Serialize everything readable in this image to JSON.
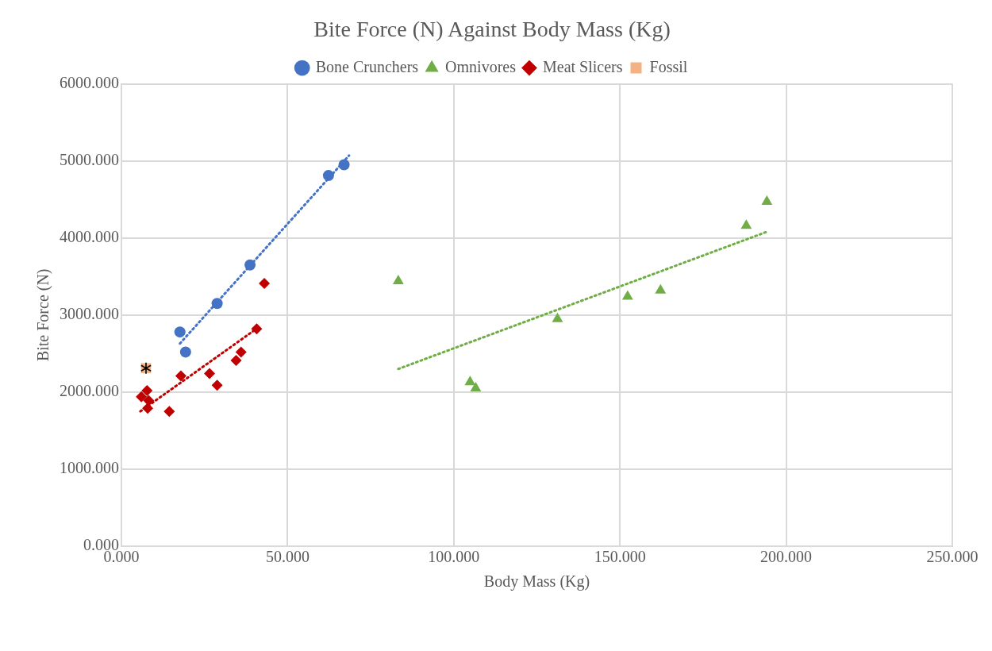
{
  "chart_data": {
    "type": "scatter",
    "title": "Bite Force (N) Against Body Mass (Kg)",
    "xlabel": "Body Mass (Kg)",
    "ylabel": "Bite Force (N)",
    "xlim": [
      0,
      250
    ],
    "xticks": [
      {
        "value": 0,
        "label": "0.000"
      },
      {
        "value": 50,
        "label": "50.000"
      },
      {
        "value": 100,
        "label": "100.000"
      },
      {
        "value": 150,
        "label": "150.000"
      },
      {
        "value": 200,
        "label": "200.000"
      },
      {
        "value": 250,
        "label": "250.000"
      }
    ],
    "ylim": [
      0,
      6000
    ],
    "yticks": [
      {
        "value": 0,
        "label": "0.000"
      },
      {
        "value": 1000,
        "label": "1000.000"
      },
      {
        "value": 2000,
        "label": "2000.000"
      },
      {
        "value": 3000,
        "label": "3000.000"
      },
      {
        "value": 4000,
        "label": "4000.000"
      },
      {
        "value": 5000,
        "label": "5000.000"
      },
      {
        "value": 6000,
        "label": "6000.000"
      }
    ],
    "grid": true,
    "legend": "top",
    "series": [
      {
        "name": "Bone Crunchers",
        "marker": "circle",
        "color": "#4472c4",
        "x": [
          17.6,
          19.3,
          28.8,
          38.7,
          62.3,
          67.0
        ],
        "values": [
          2780,
          2520,
          3150,
          3650,
          4810,
          4950
        ]
      },
      {
        "name": "Omnivores",
        "marker": "triangle",
        "color": "#70ad47",
        "x": [
          83.3,
          104.9,
          106.6,
          131.2,
          152.3,
          162.2,
          188.0,
          194.2
        ],
        "values": [
          3440,
          2130,
          2050,
          2950,
          3240,
          3320,
          4160,
          4470
        ]
      },
      {
        "name": "Meat Slicers",
        "marker": "diamond",
        "color": "#c00000",
        "x": [
          43.0,
          40.7,
          36.0,
          34.5,
          26.5,
          28.8,
          17.9,
          7.7,
          6.0,
          8.2,
          7.9,
          14.4
        ],
        "values": [
          3410,
          2820,
          2520,
          2410,
          2240,
          2090,
          2210,
          2020,
          1940,
          1890,
          1790,
          1750
        ]
      },
      {
        "name": "Fossil",
        "marker": "square",
        "color": "#f4b183",
        "x": [
          7.4
        ],
        "values": [
          2310
        ]
      },
      {
        "type": "line",
        "marker": "none",
        "line_style": "dotted",
        "color": "#4472c4",
        "x": [
          17.6,
          68.5
        ],
        "values": [
          2630,
          5070
        ]
      },
      {
        "type": "line",
        "marker": "none",
        "line_style": "dotted",
        "color": "#70ad47",
        "x": [
          83.3,
          194.2
        ],
        "values": [
          2300,
          4080
        ]
      },
      {
        "type": "line",
        "marker": "none",
        "line_style": "dotted",
        "color": "#c00000",
        "x": [
          5.7,
          40.9
        ],
        "values": [
          1750,
          2830
        ]
      }
    ]
  }
}
